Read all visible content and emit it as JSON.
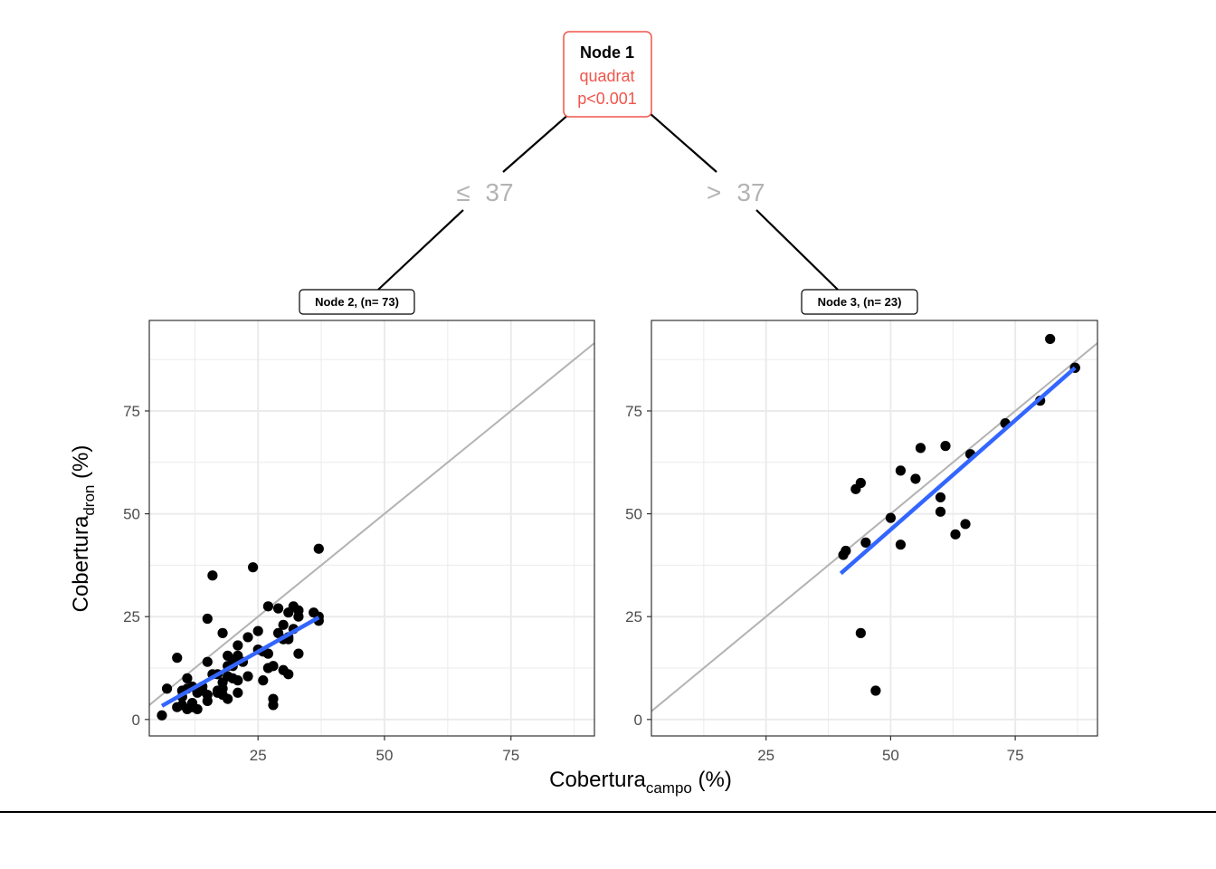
{
  "tree": {
    "root": {
      "title": "Node 1",
      "variable": "quadrat",
      "pvalue": "p<0.001",
      "border_color": "#f0554b"
    },
    "edges": [
      {
        "op": "≤",
        "value": "37"
      },
      {
        "op": ">",
        "value": "37"
      }
    ]
  },
  "axes": {
    "xlabel_main": "Cobertura",
    "xlabel_sub": "campo",
    "xlabel_unit": " (%)",
    "ylabel_main": "Cobertura",
    "ylabel_sub": "dron",
    "ylabel_unit": " (%)"
  },
  "colors": {
    "points": "#000000",
    "fit_line": "#3366ff",
    "identity_line": "#b3b3b3",
    "grid": "#ebebeb"
  },
  "chart_data": [
    {
      "type": "scatter",
      "label": "Node 2, (n= 73)",
      "xlim": [
        3.5,
        91.5
      ],
      "ylim": [
        -4,
        97
      ],
      "xticks": [
        25,
        50,
        75
      ],
      "yticks": [
        0,
        25,
        50,
        75
      ],
      "grid": true,
      "identity_line": true,
      "fit_line": {
        "x": [
          6,
          37
        ],
        "y": [
          3.3,
          24.8
        ]
      },
      "points": [
        [
          6,
          1
        ],
        [
          7,
          7.5
        ],
        [
          9,
          15
        ],
        [
          9,
          3
        ],
        [
          10,
          5.5
        ],
        [
          10,
          7
        ],
        [
          10,
          3.5
        ],
        [
          11,
          10
        ],
        [
          11,
          7.5
        ],
        [
          11,
          2.5
        ],
        [
          12,
          3
        ],
        [
          12,
          8
        ],
        [
          13,
          2.5
        ],
        [
          13,
          6.5
        ],
        [
          14,
          7
        ],
        [
          14,
          8
        ],
        [
          15,
          24.5
        ],
        [
          15,
          14
        ],
        [
          15,
          4.5
        ],
        [
          15,
          6
        ],
        [
          16,
          35
        ],
        [
          16,
          11
        ],
        [
          17,
          6.5
        ],
        [
          17,
          7
        ],
        [
          17,
          11
        ],
        [
          18,
          21
        ],
        [
          18,
          9
        ],
        [
          18,
          6
        ],
        [
          18,
          7.5
        ],
        [
          19,
          15.5
        ],
        [
          19,
          13
        ],
        [
          19,
          5
        ],
        [
          20,
          10
        ],
        [
          20,
          13
        ],
        [
          20,
          14.5
        ],
        [
          21,
          18
        ],
        [
          21,
          15.5
        ],
        [
          21,
          9.5
        ],
        [
          21,
          6.5
        ],
        [
          22,
          14
        ],
        [
          23,
          10.5
        ],
        [
          24,
          37
        ],
        [
          25,
          21.5
        ],
        [
          25,
          17
        ],
        [
          26,
          9.5
        ],
        [
          27,
          27.5
        ],
        [
          27,
          16
        ],
        [
          27,
          12.5
        ],
        [
          28,
          5
        ],
        [
          28,
          3.5
        ],
        [
          28,
          13
        ],
        [
          29,
          27
        ],
        [
          29,
          21
        ],
        [
          30,
          23
        ],
        [
          30,
          12
        ],
        [
          30,
          19.5
        ],
        [
          31,
          26
        ],
        [
          31,
          20
        ],
        [
          31,
          11
        ],
        [
          31,
          19.5
        ],
        [
          32,
          27.5
        ],
        [
          32,
          22
        ],
        [
          33,
          25
        ],
        [
          33,
          26.5
        ],
        [
          33,
          16
        ],
        [
          36,
          26
        ],
        [
          37,
          41.5
        ],
        [
          37,
          25
        ],
        [
          37,
          24
        ],
        [
          26,
          16.5
        ],
        [
          19,
          10.5
        ],
        [
          12,
          4
        ],
        [
          23,
          20
        ]
      ]
    },
    {
      "type": "scatter",
      "label": "Node 3, (n= 23)",
      "xlim": [
        2,
        91.5
      ],
      "ylim": [
        -4,
        97
      ],
      "xticks": [
        25,
        50,
        75
      ],
      "yticks": [
        0,
        25,
        50,
        75
      ],
      "grid": true,
      "identity_line": true,
      "fit_line": {
        "x": [
          40,
          87
        ],
        "y": [
          35.5,
          85.5
        ]
      },
      "points": [
        [
          40.5,
          40
        ],
        [
          41,
          41
        ],
        [
          43,
          56
        ],
        [
          44,
          57.5
        ],
        [
          44,
          21
        ],
        [
          45,
          43
        ],
        [
          47,
          7
        ],
        [
          50,
          49
        ],
        [
          52,
          60.5
        ],
        [
          52,
          42.5
        ],
        [
          55,
          58.5
        ],
        [
          56,
          66
        ],
        [
          60,
          54
        ],
        [
          60,
          50.5
        ],
        [
          61,
          66.5
        ],
        [
          63,
          45
        ],
        [
          65,
          47.5
        ],
        [
          66,
          64.5
        ],
        [
          73,
          72
        ],
        [
          80,
          77.5
        ],
        [
          82,
          92.5
        ],
        [
          87,
          85.5
        ],
        [
          87,
          85.5
        ]
      ]
    }
  ]
}
